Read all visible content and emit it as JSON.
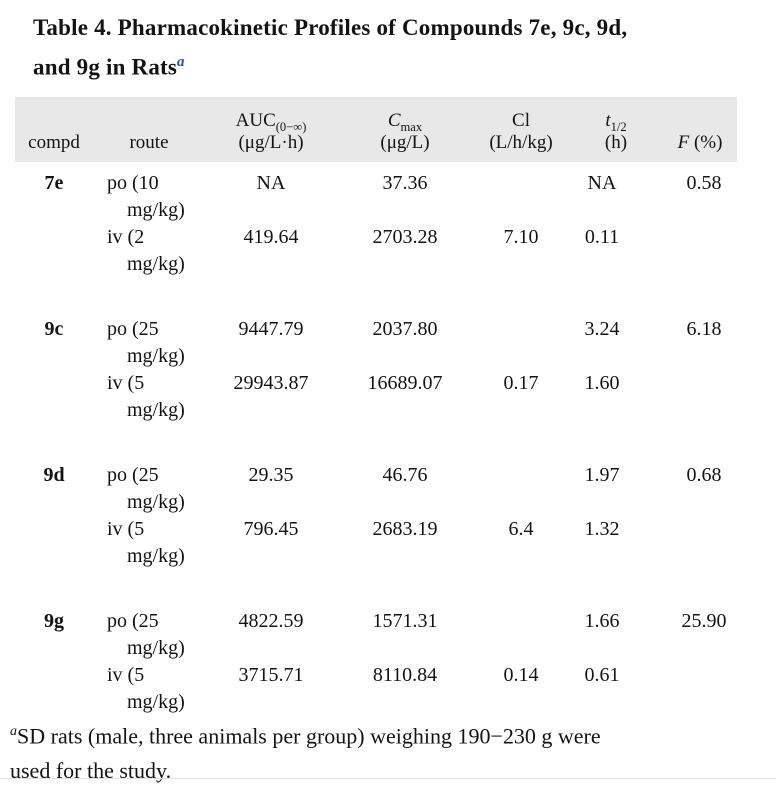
{
  "colors": {
    "header_bg": "#e8e8e8",
    "text": "#131313",
    "title_sup": "#2750c8",
    "bottom_rule": "#dde2e5"
  },
  "title": {
    "line1": "Table 4. Pharmacokinetic Profiles of Compounds 7e, 9c, 9d,",
    "line2": "and 9g in Rats",
    "superscript": "a"
  },
  "table": {
    "headers": {
      "compd": "compd",
      "route": "route",
      "auc_base": "AUC",
      "auc_sub": "(0−∞)",
      "auc_unit": "(μg/L·h)",
      "cmax_base": "C",
      "cmax_sub": "max",
      "cmax_unit": "(μg/L)",
      "cl_base": "Cl",
      "cl_unit": "(L/h/kg)",
      "thalf_base": "t",
      "thalf_sub": "1/2",
      "thalf_unit": "(h)",
      "f_base": "F",
      "f_unit": "(%)"
    },
    "rows": [
      {
        "compd": "7e",
        "route_line1": "po (10",
        "route_line2": "mg/kg)",
        "auc": "NA",
        "cmax": "37.36",
        "cl": "",
        "t_half": "NA",
        "f": "0.58"
      },
      {
        "compd": "",
        "route_line1": "iv (2",
        "route_line2": "mg/kg)",
        "auc": "419.64",
        "cmax": "2703.28",
        "cl": "7.10",
        "t_half": "0.11",
        "f": ""
      },
      {
        "compd": "9c",
        "route_line1": "po (25",
        "route_line2": "mg/kg)",
        "auc": "9447.79",
        "cmax": "2037.80",
        "cl": "",
        "t_half": "3.24",
        "f": "6.18"
      },
      {
        "compd": "",
        "route_line1": "iv (5",
        "route_line2": "mg/kg)",
        "auc": "29943.87",
        "cmax": "16689.07",
        "cl": "0.17",
        "t_half": "1.60",
        "f": ""
      },
      {
        "compd": "9d",
        "route_line1": "po (25",
        "route_line2": "mg/kg)",
        "auc": "29.35",
        "cmax": "46.76",
        "cl": "",
        "t_half": "1.97",
        "f": "0.68"
      },
      {
        "compd": "",
        "route_line1": "iv (5",
        "route_line2": "mg/kg)",
        "auc": "796.45",
        "cmax": "2683.19",
        "cl": "6.4",
        "t_half": "1.32",
        "f": ""
      },
      {
        "compd": "9g",
        "route_line1": "po (25",
        "route_line2": "mg/kg)",
        "auc": "4822.59",
        "cmax": "1571.31",
        "cl": "",
        "t_half": "1.66",
        "f": "25.90"
      },
      {
        "compd": "",
        "route_line1": "iv (5",
        "route_line2": "mg/kg)",
        "auc": "3715.71",
        "cmax": "8110.84",
        "cl": "0.14",
        "t_half": "0.61",
        "f": ""
      }
    ]
  },
  "footnote": {
    "superscript": "a",
    "line1": "SD rats (male, three animals per group) weighing 190−230 g were",
    "line2": "used for the study."
  }
}
